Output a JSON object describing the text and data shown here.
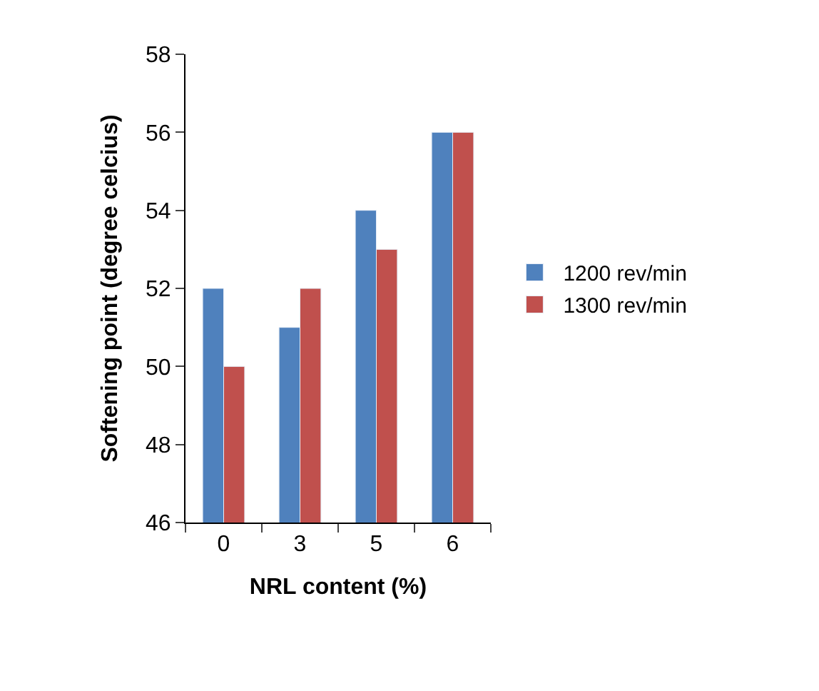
{
  "chart_data": {
    "type": "bar",
    "xlabel": "NRL content (%)",
    "ylabel": "Softening point (degree celcius)",
    "categories": [
      "0",
      "3",
      "5",
      "6"
    ],
    "series": [
      {
        "name": "1200 rev/min",
        "color": "#4f81bd",
        "values": [
          52,
          51,
          54,
          56
        ]
      },
      {
        "name": "1300 rev/min",
        "color": "#c0504d",
        "values": [
          50,
          52,
          53,
          56
        ]
      }
    ],
    "ylim": [
      46,
      58
    ],
    "yticks": [
      46,
      48,
      50,
      52,
      54,
      56,
      58
    ],
    "legend": "right"
  }
}
